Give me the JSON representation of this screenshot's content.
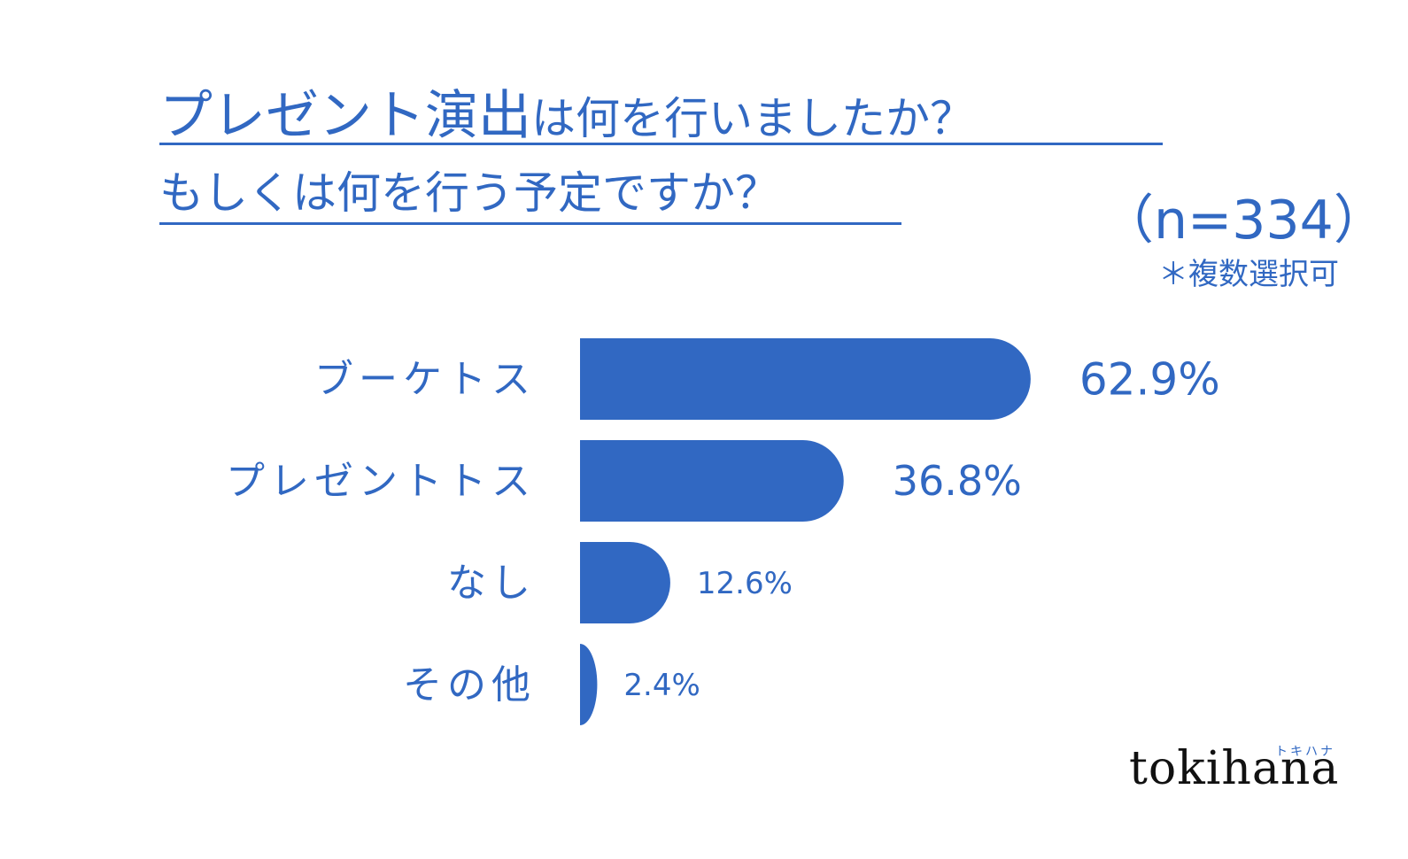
{
  "title": {
    "line1_main": "プレゼント演出",
    "line1_rest": "は何を行いましたか？",
    "line2": "もしくは何を行う予定ですか？"
  },
  "sample_size": "（n=334）",
  "note": "＊複数選択可",
  "logo": {
    "text": "tokihana",
    "kana": "トキハナ"
  },
  "colors": {
    "bar": "#3168c2",
    "text": "#3168c2"
  },
  "chart_data": {
    "type": "bar",
    "orientation": "horizontal",
    "categories": [
      "ブーケトス",
      "プレゼントトス",
      "なし",
      "その他"
    ],
    "values": [
      62.9,
      36.8,
      12.6,
      2.4
    ],
    "value_labels": [
      "62.9%",
      "36.8%",
      "12.6%",
      "2.4%"
    ],
    "unit": "%",
    "title": "プレゼント演出は何を行いましたか？もしくは何を行う予定ですか？",
    "xlabel": "",
    "ylabel": "",
    "grid": false,
    "legend": "none"
  }
}
